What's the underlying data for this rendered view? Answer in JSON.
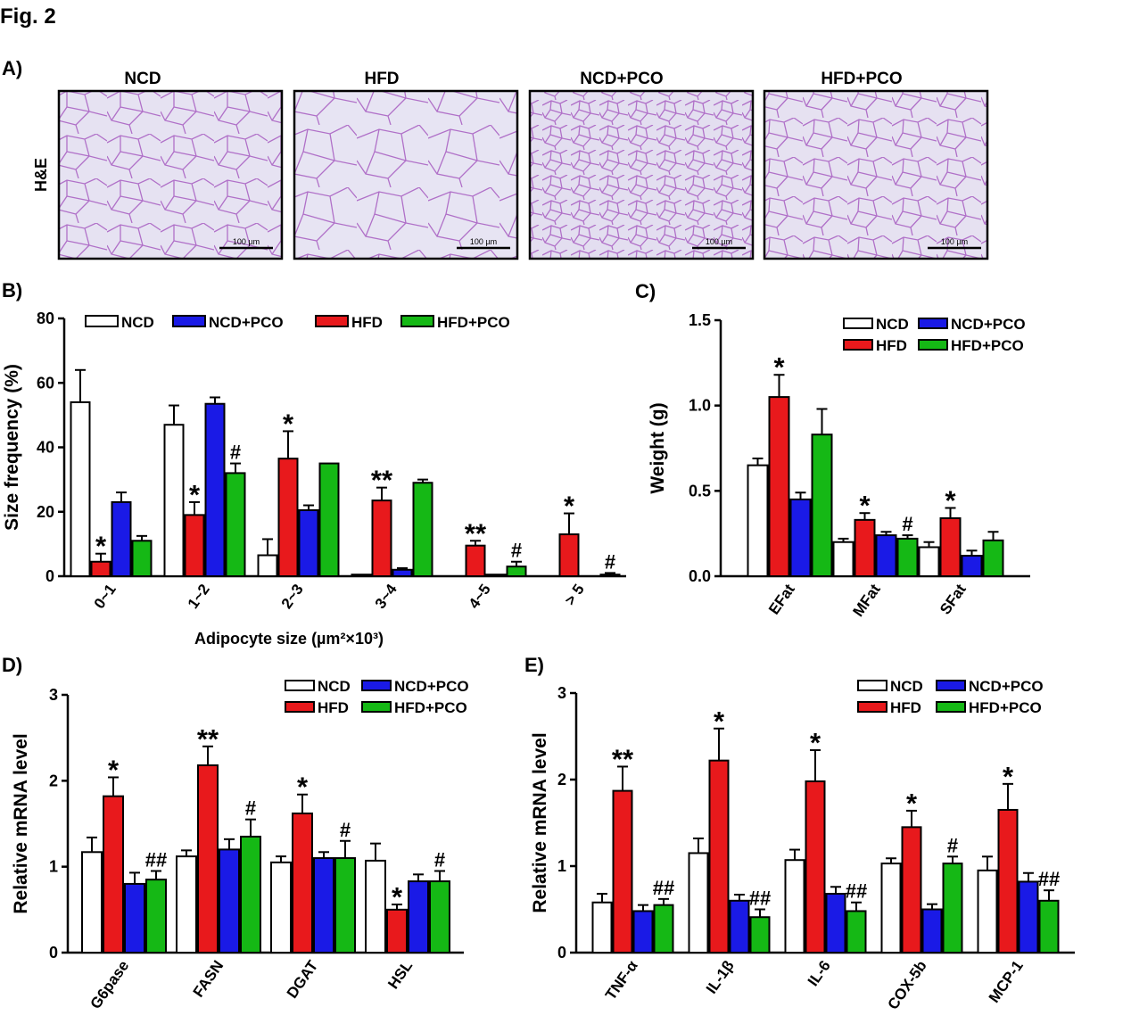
{
  "figure_label": "Fig. 2",
  "colors": {
    "NCD": "#ffffff",
    "NCD+PCO": "#1a1ae6",
    "HFD": "#e8191c",
    "HFD+PCO": "#15b815",
    "tissue_bg": "#e4e0f0",
    "membrane": "#b070c8"
  },
  "panelA": {
    "label": "A)",
    "row_label": "H&E",
    "images": [
      {
        "title": "NCD",
        "scale": "100 µm"
      },
      {
        "title": "HFD",
        "scale": "100 µm"
      },
      {
        "title": "NCD+PCO",
        "scale": "100 µm"
      },
      {
        "title": "HFD+PCO",
        "scale": "100 µm"
      }
    ]
  },
  "chart_data": [
    {
      "panel": "B)",
      "type": "bar",
      "xlabel": "Adipocyte size (µm²×10³)",
      "ylabel": "Size frequency (%)",
      "ylim": [
        0,
        80
      ],
      "yticks": [
        "0",
        "20",
        "40",
        "60",
        "80"
      ],
      "categories": [
        "0~1",
        "1~2",
        "2~3",
        "3~4",
        "4~5",
        "> 5"
      ],
      "legend": [
        "NCD",
        "NCD+PCO",
        "HFD",
        "HFD+PCO"
      ],
      "series": [
        {
          "name": "NCD",
          "color": "#ffffff",
          "values": [
            54,
            47,
            6.5,
            0.5,
            0,
            0
          ],
          "errors": [
            10,
            6,
            5,
            0,
            0,
            0
          ]
        },
        {
          "name": "HFD",
          "color": "#e8191c",
          "values": [
            4.5,
            19,
            36.5,
            23.5,
            9.5,
            13
          ],
          "errors": [
            2.5,
            4,
            8.5,
            4,
            1.5,
            6.5
          ],
          "sig": [
            "*",
            "*",
            "*",
            "**",
            "**",
            "*"
          ]
        },
        {
          "name": "NCD+PCO",
          "color": "#1a1ae6",
          "values": [
            23,
            53.5,
            20.5,
            2,
            0.5,
            0
          ],
          "errors": [
            3,
            2,
            1.5,
            0.5,
            0,
            0
          ]
        },
        {
          "name": "HFD+PCO",
          "color": "#15b815",
          "values": [
            11,
            32,
            35,
            29,
            3,
            0.5
          ],
          "errors": [
            1.5,
            3,
            0,
            1,
            1.5,
            0.5
          ],
          "sig": [
            "",
            "#",
            "",
            "",
            "#",
            "#"
          ]
        }
      ]
    },
    {
      "panel": "C)",
      "type": "bar",
      "xlabel": "",
      "ylabel": "Weight (g)",
      "ylim": [
        0,
        1.5
      ],
      "yticks": [
        "0.0",
        "0.5",
        "1.0",
        "1.5"
      ],
      "categories": [
        "EFat",
        "MFat",
        "SFat"
      ],
      "legend": [
        "NCD",
        "NCD+PCO",
        "HFD",
        "HFD+PCO"
      ],
      "series": [
        {
          "name": "NCD",
          "color": "#ffffff",
          "values": [
            0.65,
            0.2,
            0.17
          ],
          "errors": [
            0.04,
            0.02,
            0.03
          ]
        },
        {
          "name": "HFD",
          "color": "#e8191c",
          "values": [
            1.05,
            0.33,
            0.34
          ],
          "errors": [
            0.13,
            0.04,
            0.06
          ],
          "sig": [
            "*",
            "*",
            "*"
          ]
        },
        {
          "name": "NCD+PCO",
          "color": "#1a1ae6",
          "values": [
            0.45,
            0.24,
            0.12
          ],
          "errors": [
            0.04,
            0.02,
            0.03
          ]
        },
        {
          "name": "HFD+PCO",
          "color": "#15b815",
          "values": [
            0.83,
            0.22,
            0.21
          ],
          "errors": [
            0.15,
            0.02,
            0.05
          ],
          "sig": [
            "",
            "#",
            ""
          ]
        }
      ]
    },
    {
      "panel": "D)",
      "type": "bar",
      "xlabel": "",
      "ylabel": "Relative mRNA level",
      "ylim": [
        0,
        3
      ],
      "yticks": [
        "0",
        "1",
        "2",
        "3"
      ],
      "categories": [
        "G6pase",
        "FASN",
        "DGAT",
        "HSL"
      ],
      "legend": [
        "NCD",
        "NCD+PCO",
        "HFD",
        "HFD+PCO"
      ],
      "series": [
        {
          "name": "NCD",
          "color": "#ffffff",
          "values": [
            1.17,
            1.12,
            1.05,
            1.07
          ],
          "errors": [
            0.17,
            0.07,
            0.07,
            0.2
          ]
        },
        {
          "name": "HFD",
          "color": "#e8191c",
          "values": [
            1.82,
            2.18,
            1.62,
            0.5
          ],
          "errors": [
            0.22,
            0.22,
            0.22,
            0.06
          ],
          "sig": [
            "*",
            "**",
            "*",
            "*"
          ]
        },
        {
          "name": "NCD+PCO",
          "color": "#1a1ae6",
          "values": [
            0.8,
            1.2,
            1.1,
            0.83
          ],
          "errors": [
            0.13,
            0.12,
            0.07,
            0.08
          ]
        },
        {
          "name": "HFD+PCO",
          "color": "#15b815",
          "values": [
            0.85,
            1.35,
            1.1,
            0.83
          ],
          "errors": [
            0.1,
            0.2,
            0.2,
            0.12
          ],
          "sig": [
            "##",
            "#",
            "#",
            "#"
          ]
        }
      ]
    },
    {
      "panel": "E)",
      "type": "bar",
      "xlabel": "",
      "ylabel": "Relative mRNA level",
      "ylim": [
        0,
        3
      ],
      "yticks": [
        "0",
        "1",
        "2",
        "3"
      ],
      "categories": [
        "TNF-α",
        "IL-1β",
        "IL-6",
        "COX-5b",
        "MCP-1"
      ],
      "legend": [
        "NCD",
        "NCD+PCO",
        "HFD",
        "HFD+PCO"
      ],
      "series": [
        {
          "name": "NCD",
          "color": "#ffffff",
          "values": [
            0.58,
            1.15,
            1.07,
            1.03,
            0.95
          ],
          "errors": [
            0.1,
            0.17,
            0.12,
            0.06,
            0.16
          ]
        },
        {
          "name": "HFD",
          "color": "#e8191c",
          "values": [
            1.87,
            2.22,
            1.98,
            1.45,
            1.65
          ],
          "errors": [
            0.28,
            0.37,
            0.36,
            0.19,
            0.3
          ],
          "sig": [
            "**",
            "*",
            "*",
            "*",
            "*"
          ]
        },
        {
          "name": "NCD+PCO",
          "color": "#1a1ae6",
          "values": [
            0.48,
            0.6,
            0.68,
            0.5,
            0.82
          ],
          "errors": [
            0.07,
            0.07,
            0.08,
            0.06,
            0.1
          ]
        },
        {
          "name": "HFD+PCO",
          "color": "#15b815",
          "values": [
            0.55,
            0.41,
            0.48,
            1.03,
            0.6
          ],
          "errors": [
            0.07,
            0.09,
            0.1,
            0.08,
            0.12
          ],
          "sig": [
            "##",
            "##",
            "##",
            "#",
            "##"
          ]
        }
      ]
    }
  ]
}
